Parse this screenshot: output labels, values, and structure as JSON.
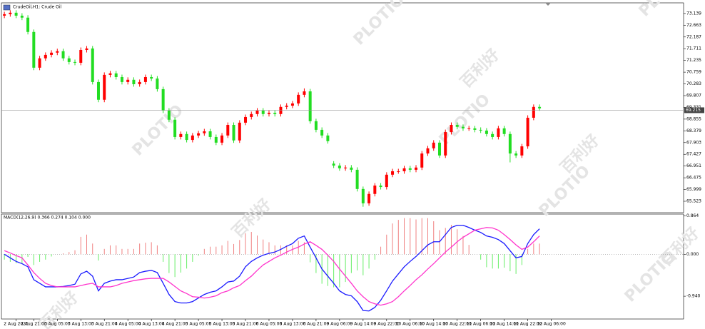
{
  "watermark": [
    "PLOTIO",
    "百利好"
  ],
  "chart_data": [
    {
      "type": "candlestick",
      "title": "CrudeOil,H1: Crude Oil",
      "up_color": "#ff0000",
      "down_color": "#22dd22",
      "xlim": [
        -0.5,
        115.5
      ],
      "ylim": [
        65.06,
        73.57
      ],
      "yticks": [
        73.139,
        72.663,
        72.187,
        71.711,
        71.235,
        70.759,
        70.283,
        69.807,
        69.331,
        68.855,
        68.379,
        67.903,
        67.427,
        66.951,
        66.475,
        65.999,
        65.523
      ],
      "current_price": 69.215,
      "open": [
        73.05,
        73.11,
        73.17,
        73.05,
        72.97,
        72.39,
        70.94,
        71.32,
        71.46,
        71.55,
        71.61,
        71.32,
        71.17,
        71.14,
        71.66,
        71.72,
        70.36,
        69.64,
        70.65,
        70.71,
        70.56,
        70.36,
        70.45,
        70.27,
        70.36,
        70.56,
        70.5,
        70.07,
        69.2,
        68.83,
        68.13,
        68.25,
        68.01,
        68.19,
        68.28,
        68.36,
        68.13,
        67.9,
        68.19,
        68.62,
        67.99,
        68.71,
        68.94,
        69.06,
        69.2,
        69.06,
        69.11,
        69.06,
        69.35,
        69.4,
        69.49,
        69.84,
        69.98,
        68.77,
        68.42,
        68.19,
        67.05,
        66.97,
        66.86,
        66.89,
        66.8,
        66.02,
        65.44,
        65.82,
        66.16,
        66.1,
        66.6,
        66.74,
        66.74,
        66.86,
        66.8,
        66.89,
        67.46,
        67.67,
        67.9,
        67.38,
        68.33,
        68.62,
        68.54,
        68.48,
        68.48,
        68.42,
        68.39,
        68.25,
        68.13,
        68.48,
        68.25,
        67.46,
        67.38,
        67.75,
        68.91,
        69.35
      ],
      "high": [
        73.21,
        73.27,
        73.27,
        73.15,
        73.07,
        72.49,
        71.42,
        71.56,
        71.65,
        71.71,
        71.71,
        71.42,
        71.27,
        71.76,
        71.82,
        71.82,
        70.46,
        70.75,
        70.81,
        70.81,
        70.66,
        70.55,
        70.55,
        70.46,
        70.66,
        70.66,
        70.6,
        70.17,
        69.3,
        68.93,
        68.35,
        68.35,
        68.29,
        68.38,
        68.46,
        68.46,
        68.23,
        68.29,
        68.72,
        68.72,
        68.81,
        69.04,
        69.16,
        69.3,
        69.3,
        69.21,
        69.21,
        69.45,
        69.5,
        69.59,
        69.94,
        70.1,
        70.08,
        68.87,
        68.52,
        68.29,
        67.15,
        67.07,
        66.99,
        66.99,
        66.9,
        66.12,
        65.92,
        66.26,
        66.26,
        66.7,
        66.84,
        66.84,
        66.96,
        66.96,
        66.99,
        67.56,
        67.77,
        68.0,
        68.0,
        68.43,
        68.72,
        68.72,
        68.64,
        68.58,
        68.58,
        68.52,
        68.49,
        68.35,
        68.58,
        68.58,
        68.35,
        67.56,
        67.85,
        69.01,
        69.45,
        69.45
      ],
      "low": [
        72.95,
        73.01,
        72.95,
        72.87,
        72.29,
        70.84,
        70.84,
        71.22,
        71.36,
        71.45,
        71.22,
        71.07,
        71.04,
        71.04,
        71.56,
        70.26,
        69.54,
        69.54,
        70.55,
        70.46,
        70.26,
        70.26,
        70.17,
        70.17,
        70.26,
        70.4,
        69.97,
        69.1,
        68.73,
        68.03,
        68.03,
        67.91,
        67.91,
        68.09,
        68.18,
        68.03,
        67.8,
        67.8,
        68.09,
        67.89,
        67.89,
        68.61,
        68.84,
        68.96,
        68.96,
        68.96,
        68.96,
        68.96,
        69.25,
        69.3,
        69.39,
        69.74,
        68.67,
        68.32,
        68.09,
        67.86,
        66.87,
        66.76,
        66.76,
        66.7,
        65.92,
        65.3,
        65.34,
        65.72,
        66.0,
        66.0,
        66.5,
        66.64,
        66.64,
        66.7,
        66.7,
        66.79,
        67.36,
        67.57,
        67.28,
        67.28,
        68.23,
        68.44,
        68.38,
        68.38,
        68.32,
        68.29,
        68.15,
        68.03,
        68.03,
        68.15,
        67.1,
        67.28,
        67.28,
        67.65,
        68.81,
        69.19
      ],
      "close": [
        73.11,
        73.17,
        73.05,
        72.97,
        72.39,
        70.94,
        71.32,
        71.46,
        71.55,
        71.61,
        71.32,
        71.17,
        71.14,
        71.66,
        71.72,
        70.36,
        69.64,
        70.65,
        70.71,
        70.56,
        70.36,
        70.45,
        70.27,
        70.36,
        70.56,
        70.5,
        70.07,
        69.2,
        68.83,
        68.13,
        68.25,
        68.01,
        68.19,
        68.28,
        68.36,
        68.13,
        67.9,
        68.19,
        68.62,
        67.99,
        68.71,
        68.94,
        69.06,
        69.2,
        69.06,
        69.11,
        69.06,
        69.35,
        69.4,
        69.49,
        69.84,
        69.98,
        68.77,
        68.42,
        68.19,
        67.96,
        66.97,
        66.86,
        66.89,
        66.8,
        66.02,
        65.44,
        65.82,
        66.16,
        66.1,
        66.6,
        66.74,
        66.74,
        66.86,
        66.8,
        66.89,
        67.46,
        67.67,
        67.9,
        67.38,
        68.33,
        68.62,
        68.54,
        68.48,
        68.48,
        68.42,
        68.39,
        68.25,
        68.13,
        68.48,
        68.25,
        67.46,
        67.38,
        67.75,
        68.91,
        69.35,
        69.29
      ]
    },
    {
      "type": "macd",
      "title": "MACD(12,26,9) 0.366 0.274 0.104 0.000",
      "xlim": [
        -0.5,
        115.5
      ],
      "ylim": [
        -1.45,
        0.9
      ],
      "yticks": [
        0.864,
        {
          "value": 0,
          "label": "0.000"
        },
        {
          "value": -0.94,
          "label": "-0.940"
        }
      ],
      "zero_line": true,
      "xticks": [
        {
          "value": 2,
          "label": "2 Aug 2021"
        },
        {
          "value": 5,
          "label": "2 Aug 21:00"
        },
        {
          "value": 9,
          "label": "3 Aug 05:00"
        },
        {
          "value": 13,
          "label": "3 Aug 13:00"
        },
        {
          "value": 17,
          "label": "3 Aug 21:00"
        },
        {
          "value": 21,
          "label": "4 Aug 05:00"
        },
        {
          "value": 25,
          "label": "4 Aug 13:00"
        },
        {
          "value": 29,
          "label": "4 Aug 21:00"
        },
        {
          "value": 33,
          "label": "5 Aug 05:00"
        },
        {
          "value": 37,
          "label": "5 Aug 13:00"
        },
        {
          "value": 41,
          "label": "5 Aug 21:00"
        },
        {
          "value": 45,
          "label": "6 Aug 05:00"
        },
        {
          "value": 49,
          "label": "6 Aug 13:00"
        },
        {
          "value": 53,
          "label": "6 Aug 21:00"
        },
        {
          "value": 57,
          "label": "9 Aug 06:00"
        },
        {
          "value": 61,
          "label": "9 Aug 14:00"
        },
        {
          "value": 65,
          "label": "9 Aug 22:00"
        },
        {
          "value": 69,
          "label": "10 Aug 06:00"
        },
        {
          "value": 73,
          "label": "10 Aug 14:00"
        },
        {
          "value": 77,
          "label": "10 Aug 22:00"
        },
        {
          "value": 81,
          "label": "11 Aug 06:00"
        },
        {
          "value": 85,
          "label": "11 Aug 14:00"
        },
        {
          "value": 89,
          "label": "11 Aug 22:00"
        },
        {
          "value": 93,
          "label": "12 Aug 06:00"
        }
      ],
      "histogram": {
        "up_color": "#f08080",
        "down_color": "#66ee66",
        "values": [
          -0.12,
          -0.17,
          -0.2,
          -0.2,
          -0.06,
          -0.24,
          -0.17,
          -0.12,
          -0.05,
          0.0,
          0.02,
          0.05,
          0.09,
          0.39,
          0.44,
          0.24,
          -0.14,
          0.12,
          0.2,
          0.2,
          0.12,
          0.12,
          0.12,
          0.24,
          0.26,
          0.27,
          0.2,
          -0.17,
          -0.42,
          -0.51,
          -0.41,
          -0.32,
          -0.17,
          -0.03,
          0.12,
          0.17,
          0.17,
          0.2,
          0.3,
          0.23,
          0.32,
          0.47,
          0.5,
          0.42,
          0.33,
          0.27,
          0.2,
          0.2,
          0.2,
          0.2,
          0.3,
          0.27,
          -0.18,
          -0.42,
          -0.66,
          -0.71,
          -0.74,
          -0.74,
          -0.62,
          -0.42,
          -0.36,
          -0.47,
          -0.32,
          -0.12,
          0.17,
          0.44,
          0.69,
          0.77,
          0.81,
          0.81,
          0.78,
          0.81,
          0.81,
          0.74,
          0.54,
          0.59,
          0.66,
          0.56,
          0.41,
          0.21,
          0.0,
          -0.12,
          -0.29,
          -0.32,
          -0.32,
          -0.3,
          -0.38,
          -0.44,
          -0.24,
          0.12,
          0.24,
          0.24
        ]
      },
      "series": [
        {
          "color": "#1a1aff",
          "values": [
            0.0,
            -0.08,
            -0.16,
            -0.21,
            -0.28,
            -0.57,
            -0.65,
            -0.73,
            -0.73,
            -0.73,
            -0.72,
            -0.7,
            -0.67,
            -0.44,
            -0.38,
            -0.49,
            -0.82,
            -0.65,
            -0.6,
            -0.57,
            -0.57,
            -0.54,
            -0.51,
            -0.41,
            -0.38,
            -0.36,
            -0.41,
            -0.65,
            -0.9,
            -1.06,
            -1.09,
            -1.09,
            -1.06,
            -0.98,
            -0.9,
            -0.85,
            -0.82,
            -0.73,
            -0.62,
            -0.6,
            -0.49,
            -0.28,
            -0.16,
            -0.08,
            -0.02,
            0.02,
            0.05,
            0.11,
            0.18,
            0.24,
            0.36,
            0.41,
            0.16,
            -0.08,
            -0.33,
            -0.49,
            -0.65,
            -0.82,
            -0.9,
            -0.93,
            -1.06,
            -1.26,
            -1.27,
            -1.19,
            -1.03,
            -0.82,
            -0.6,
            -0.44,
            -0.28,
            -0.16,
            -0.05,
            0.08,
            0.21,
            0.28,
            0.28,
            0.44,
            0.6,
            0.65,
            0.65,
            0.6,
            0.54,
            0.49,
            0.41,
            0.38,
            0.33,
            0.24,
            0.08,
            -0.08,
            -0.05,
            0.24,
            0.44,
            0.57
          ]
        },
        {
          "color": "#ff33cc",
          "values": [
            0.08,
            0.03,
            -0.03,
            -0.08,
            -0.24,
            -0.41,
            -0.54,
            -0.65,
            -0.7,
            -0.73,
            -0.73,
            -0.73,
            -0.73,
            -0.7,
            -0.67,
            -0.65,
            -0.73,
            -0.73,
            -0.73,
            -0.7,
            -0.65,
            -0.62,
            -0.59,
            -0.57,
            -0.55,
            -0.54,
            -0.54,
            -0.54,
            -0.62,
            -0.72,
            -0.82,
            -0.88,
            -0.95,
            -0.96,
            -0.98,
            -0.96,
            -0.93,
            -0.86,
            -0.82,
            -0.75,
            -0.7,
            -0.59,
            -0.49,
            -0.36,
            -0.24,
            -0.16,
            -0.08,
            -0.02,
            0.05,
            0.11,
            0.16,
            0.23,
            0.28,
            0.2,
            0.11,
            -0.02,
            -0.16,
            -0.33,
            -0.49,
            -0.65,
            -0.82,
            -0.95,
            -1.06,
            -1.11,
            -1.14,
            -1.11,
            -1.06,
            -0.95,
            -0.82,
            -0.7,
            -0.57,
            -0.46,
            -0.33,
            -0.21,
            -0.08,
            0.05,
            0.16,
            0.28,
            0.38,
            0.46,
            0.54,
            0.57,
            0.6,
            0.59,
            0.54,
            0.44,
            0.33,
            0.21,
            0.11,
            0.16,
            0.28,
            0.41
          ]
        }
      ]
    }
  ]
}
